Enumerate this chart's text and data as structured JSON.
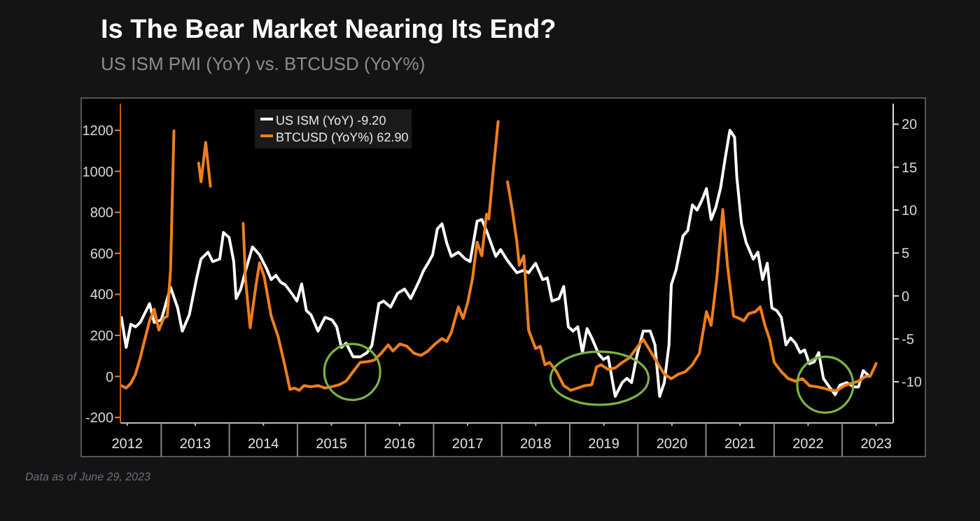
{
  "chart_data": {
    "type": "line",
    "title": "Is The Bear Market Nearing Its End?",
    "subtitle": "US ISM PMI (YoY) vs. BTCUSD (YoY%)",
    "annotations": [
      "Data as of June 29, 2023"
    ],
    "xlim": [
      2012.4,
      2023.75
    ],
    "xticks": [
      {
        "value": 2012.5,
        "label": "2012"
      },
      {
        "value": 2013.5,
        "label": "2013"
      },
      {
        "value": 2014.5,
        "label": "2014"
      },
      {
        "value": 2015.5,
        "label": "2015"
      },
      {
        "value": 2016.5,
        "label": "2016"
      },
      {
        "value": 2017.5,
        "label": "2017"
      },
      {
        "value": 2018.5,
        "label": "2018"
      },
      {
        "value": 2019.5,
        "label": "2019"
      },
      {
        "value": 2020.5,
        "label": "2020"
      },
      {
        "value": 2021.5,
        "label": "2021"
      },
      {
        "value": 2022.5,
        "label": "2022"
      },
      {
        "value": 2023.5,
        "label": "2023"
      }
    ],
    "ylim": [
      -227,
      1330
    ],
    "yticks": [
      -200,
      0,
      200,
      400,
      600,
      800,
      1000,
      1200
    ],
    "y2lim": [
      -14.8,
      22.4
    ],
    "y2ticks": [
      -10,
      -5,
      0,
      5,
      10,
      15,
      20
    ],
    "grid": false,
    "legend": "top left",
    "line_style": "solid",
    "marker": "none",
    "series": [
      {
        "name": "US ISM (YoY) -9.20",
        "color": "#ffffff",
        "axis": "y2",
        "x": [
          2012.416,
          2012.485,
          2012.553,
          2012.622,
          2012.691,
          2012.828,
          2012.897,
          2013.0,
          2013.137,
          2013.241,
          2013.309,
          2013.412,
          2013.515,
          2013.584,
          2013.687,
          2013.756,
          2013.859,
          2013.914,
          2013.997,
          2014.065,
          2014.1,
          2014.168,
          2014.237,
          2014.34,
          2014.443,
          2014.546,
          2014.615,
          2014.684,
          2014.753,
          2014.821,
          2014.924,
          2014.993,
          2015.062,
          2015.131,
          2015.199,
          2015.302,
          2015.405,
          2015.509,
          2015.577,
          2015.646,
          2015.715,
          2015.818,
          2015.921,
          2016.024,
          2016.093,
          2016.196,
          2016.265,
          2016.368,
          2016.471,
          2016.574,
          2016.663,
          2016.78,
          2016.849,
          2016.918,
          2016.986,
          2017.055,
          2017.124,
          2017.192,
          2017.261,
          2017.364,
          2017.467,
          2017.536,
          2017.639,
          2017.708,
          2017.777,
          2017.914,
          2017.983,
          2018.086,
          2018.223,
          2018.326,
          2018.395,
          2018.498,
          2018.601,
          2018.67,
          2018.739,
          2018.842,
          2018.911,
          2018.979,
          2019.048,
          2019.117,
          2019.186,
          2019.254,
          2019.323,
          2019.426,
          2019.495,
          2019.564,
          2019.667,
          2019.77,
          2019.838,
          2019.907,
          2019.99,
          2020.079,
          2020.182,
          2020.251,
          2020.32,
          2020.388,
          2020.457,
          2020.491,
          2020.56,
          2020.663,
          2020.732,
          2020.801,
          2020.869,
          2020.938,
          2021.007,
          2021.076,
          2021.144,
          2021.213,
          2021.282,
          2021.351,
          2021.42,
          2021.454,
          2021.522,
          2021.591,
          2021.694,
          2021.763,
          2021.832,
          2021.9,
          2021.969,
          2022.038,
          2022.107,
          2022.175,
          2022.244,
          2022.313,
          2022.381,
          2022.45,
          2022.519,
          2022.588,
          2022.656,
          2022.725,
          2022.794,
          2022.897,
          2022.966,
          2023.069,
          2023.172,
          2023.241,
          2023.31,
          2023.378
        ],
        "values": [
          -2.5,
          -6.0,
          -3.3,
          -3.6,
          -3.1,
          -0.9,
          -3.1,
          -2.8,
          1.0,
          -1.4,
          -4.1,
          -2.2,
          1.9,
          4.3,
          5.1,
          4.0,
          4.3,
          7.4,
          6.8,
          4.0,
          -0.3,
          0.8,
          2.9,
          5.7,
          4.8,
          3.2,
          1.9,
          2.4,
          1.6,
          1.3,
          0.2,
          -0.6,
          1.4,
          -1.7,
          -2.2,
          -4.1,
          -2.5,
          -2.8,
          -3.6,
          -6.0,
          -5.5,
          -7.1,
          -7.1,
          -6.6,
          -5.8,
          -0.9,
          -0.6,
          -1.3,
          0.3,
          0.8,
          -0.3,
          1.6,
          2.9,
          3.8,
          4.8,
          7.8,
          8.4,
          6.2,
          4.6,
          5.1,
          4.3,
          4.0,
          8.7,
          8.9,
          7.6,
          4.6,
          5.4,
          4.1,
          2.7,
          3.0,
          2.7,
          3.8,
          1.9,
          2.1,
          -0.6,
          -0.3,
          1.1,
          -3.6,
          -4.1,
          -3.6,
          -6.6,
          -3.8,
          -4.9,
          -6.8,
          -7.4,
          -7.1,
          -11.7,
          -10.1,
          -9.6,
          -10.1,
          -6.8,
          -4.1,
          -4.1,
          -5.7,
          -11.7,
          -10.1,
          -5.7,
          1.3,
          3.0,
          7.0,
          7.6,
          10.6,
          10.0,
          11.1,
          12.5,
          8.9,
          10.3,
          12.5,
          16.0,
          19.3,
          18.5,
          13.8,
          8.4,
          6.2,
          4.3,
          5.1,
          1.9,
          3.8,
          -1.4,
          -1.7,
          -2.5,
          -5.7,
          -4.9,
          -5.5,
          -6.6,
          -6.3,
          -7.9,
          -7.7,
          -6.6,
          -9.6,
          -10.4,
          -11.5,
          -10.4,
          -10.1,
          -10.6,
          -10.6,
          -8.7,
          -9.2
        ]
      },
      {
        "name": "BTCUSD (YoY%) 62.90",
        "color": "#f07f1a",
        "x": [
          2012.416,
          2012.485,
          2012.553,
          2012.622,
          2012.691,
          2012.759,
          2012.828,
          2012.897,
          2012.966,
          2013.034,
          2013.089,
          2013.137,
          2013.186,
          2013.213,
          2013.35,
          2013.481,
          2013.55,
          2013.584,
          2013.653,
          2013.722,
          2013.77,
          2013.97,
          2014.168,
          2014.203,
          2014.237,
          2014.306,
          2014.375,
          2014.443,
          2014.512,
          2014.615,
          2014.718,
          2014.821,
          2014.89,
          2014.959,
          2015.027,
          2015.096,
          2015.199,
          2015.302,
          2015.405,
          2015.509,
          2015.612,
          2015.715,
          2015.818,
          2015.921,
          2016.024,
          2016.127,
          2016.23,
          2016.333,
          2016.402,
          2016.505,
          2016.608,
          2016.711,
          2016.814,
          2016.918,
          2017.021,
          2017.124,
          2017.192,
          2017.261,
          2017.364,
          2017.433,
          2017.502,
          2017.57,
          2017.639,
          2017.708,
          2017.777,
          2017.811,
          2017.88,
          2017.948,
          2017.996,
          2018.003,
          2018.01,
          2018.086,
          2018.155,
          2018.223,
          2018.258,
          2018.326,
          2018.395,
          2018.498,
          2018.567,
          2018.635,
          2018.704,
          2018.807,
          2018.911,
          2019.014,
          2019.117,
          2019.22,
          2019.323,
          2019.392,
          2019.46,
          2019.564,
          2019.667,
          2019.77,
          2019.873,
          2019.976,
          2020.079,
          2020.182,
          2020.285,
          2020.388,
          2020.491,
          2020.595,
          2020.698,
          2020.801,
          2020.904,
          2021.007,
          2021.076,
          2021.158,
          2021.247,
          2021.316,
          2021.405,
          2021.488,
          2021.557,
          2021.625,
          2021.728,
          2021.797,
          2021.866,
          2021.935,
          2022.003,
          2022.107,
          2022.21,
          2022.313,
          2022.416,
          2022.519,
          2022.622,
          2022.725,
          2022.828,
          2022.931,
          2023.034,
          2023.137,
          2023.241,
          2023.344,
          2023.412,
          2023.5
        ],
        "values": [
          -45,
          -57,
          -34,
          11,
          90,
          181,
          271,
          328,
          226,
          283,
          294,
          520,
          1198,
          null,
          null,
          null,
          1040,
          949,
          1141,
          927,
          null,
          null,
          null,
          746,
          475,
          237,
          407,
          554,
          486,
          294,
          192,
          45,
          -63,
          -57,
          -68,
          -45,
          -50,
          -45,
          -57,
          -50,
          -41,
          -23,
          23,
          68,
          72,
          79,
          113,
          154,
          124,
          158,
          147,
          113,
          102,
          124,
          158,
          185,
          170,
          215,
          339,
          283,
          362,
          475,
          655,
          588,
          791,
          768,
          1017,
          1243,
          null,
          null,
          null,
          949,
          814,
          655,
          542,
          588,
          226,
          136,
          147,
          57,
          68,
          23,
          -45,
          -68,
          -57,
          -45,
          -41,
          45,
          57,
          34,
          41,
          68,
          90,
          136,
          181,
          124,
          68,
          11,
          -11,
          11,
          23,
          57,
          113,
          316,
          249,
          475,
          814,
          542,
          294,
          283,
          271,
          305,
          316,
          339,
          249,
          181,
          68,
          23,
          -11,
          -23,
          -11,
          -45,
          -50,
          -57,
          -68,
          -68,
          -45,
          -34,
          -23,
          0,
          0,
          62.9
        ]
      }
    ]
  }
}
